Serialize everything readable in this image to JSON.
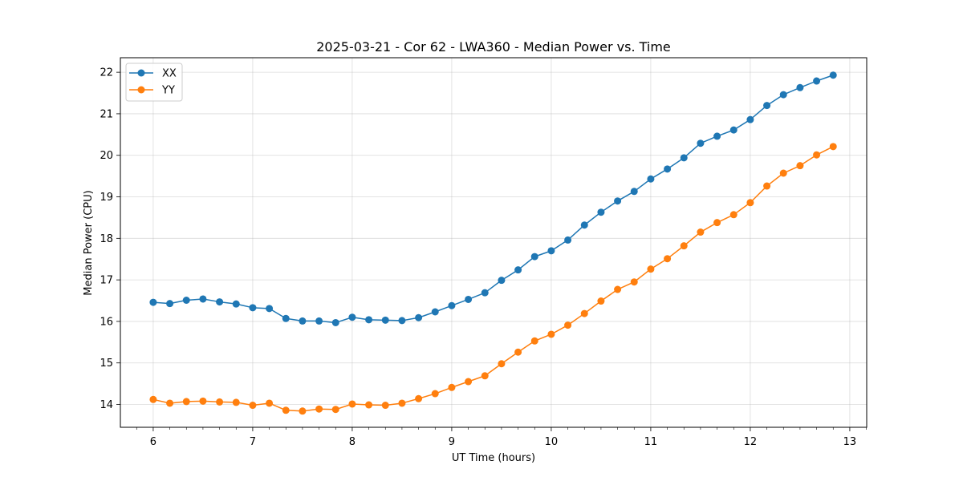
{
  "chart_data": {
    "type": "line",
    "title": "2025-03-21 - Cor 62 - LWA360 - Median Power vs. Time",
    "xlabel": "UT Time (hours)",
    "ylabel": "Median Power (CPU)",
    "xlim": [
      5.67,
      13.17
    ],
    "ylim": [
      13.45,
      22.35
    ],
    "xticks": [
      6,
      7,
      8,
      9,
      10,
      11,
      12,
      13
    ],
    "xtick_labels": [
      "6",
      "7",
      "8",
      "9",
      "10",
      "11",
      "12",
      "13"
    ],
    "yticks": [
      14,
      15,
      16,
      17,
      18,
      19,
      20,
      21,
      22
    ],
    "ytick_labels": [
      "14",
      "15",
      "16",
      "17",
      "18",
      "19",
      "20",
      "21",
      "22"
    ],
    "grid": true,
    "legend_position": "upper-left",
    "x": [
      6.0,
      6.1667,
      6.3333,
      6.5,
      6.6667,
      6.8333,
      7.0,
      7.1667,
      7.3333,
      7.5,
      7.6667,
      7.8333,
      8.0,
      8.1667,
      8.3333,
      8.5,
      8.6667,
      8.8333,
      9.0,
      9.1667,
      9.3333,
      9.5,
      9.6667,
      9.8333,
      10.0,
      10.1667,
      10.3333,
      10.5,
      10.6667,
      10.8333,
      11.0,
      11.1667,
      11.3333,
      11.5,
      11.6667,
      11.8333,
      12.0,
      12.1667,
      12.3333,
      12.5,
      12.6667,
      12.8333
    ],
    "series": [
      {
        "name": "XX",
        "color": "#1f77b4",
        "values": [
          16.46,
          16.43,
          16.51,
          16.54,
          16.47,
          16.42,
          16.33,
          16.31,
          16.07,
          16.01,
          16.01,
          15.97,
          16.1,
          16.04,
          16.03,
          16.02,
          16.09,
          16.23,
          16.38,
          16.53,
          16.69,
          16.99,
          17.24,
          17.56,
          17.7,
          17.96,
          18.32,
          18.63,
          18.9,
          19.13,
          19.43,
          19.67,
          19.94,
          20.29,
          20.46,
          20.61,
          20.86,
          21.2,
          21.46,
          21.63,
          21.79,
          21.93
        ]
      },
      {
        "name": "YY",
        "color": "#ff7f0e",
        "values": [
          14.12,
          14.03,
          14.07,
          14.08,
          14.06,
          14.05,
          13.98,
          14.03,
          13.86,
          13.84,
          13.89,
          13.88,
          14.01,
          13.99,
          13.98,
          14.03,
          14.14,
          14.26,
          14.41,
          14.55,
          14.69,
          14.98,
          15.26,
          15.53,
          15.69,
          15.91,
          16.19,
          16.49,
          16.77,
          16.95,
          17.26,
          17.51,
          17.82,
          18.15,
          18.38,
          18.57,
          18.86,
          19.26,
          19.57,
          19.75,
          20.01,
          20.21
        ]
      }
    ]
  }
}
